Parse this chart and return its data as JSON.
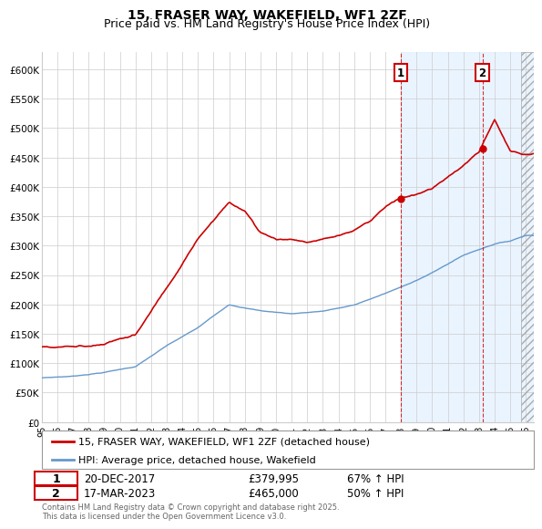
{
  "title": "15, FRASER WAY, WAKEFIELD, WF1 2ZF",
  "subtitle": "Price paid vs. HM Land Registry's House Price Index (HPI)",
  "ylabel_ticks": [
    "£0",
    "£50K",
    "£100K",
    "£150K",
    "£200K",
    "£250K",
    "£300K",
    "£350K",
    "£400K",
    "£450K",
    "£500K",
    "£550K",
    "£600K"
  ],
  "ytick_values": [
    0,
    50000,
    100000,
    150000,
    200000,
    250000,
    300000,
    350000,
    400000,
    450000,
    500000,
    550000,
    600000
  ],
  "ylim": [
    0,
    630000
  ],
  "xlim_start": 1995.0,
  "xlim_end": 2026.5,
  "vline1_x": 2017.97,
  "vline2_x": 2023.21,
  "sale1_y": 379995,
  "sale2_y": 465000,
  "legend_line1": "15, FRASER WAY, WAKEFIELD, WF1 2ZF (detached house)",
  "legend_line2": "HPI: Average price, detached house, Wakefield",
  "table_row1": [
    "1",
    "20-DEC-2017",
    "£379,995",
    "67% ↑ HPI"
  ],
  "table_row2": [
    "2",
    "17-MAR-2023",
    "£465,000",
    "50% ↑ HPI"
  ],
  "footer": "Contains HM Land Registry data © Crown copyright and database right 2025.\nThis data is licensed under the Open Government Licence v3.0.",
  "line1_color": "#cc0000",
  "line2_color": "#6699cc",
  "vline_color": "#cc0000",
  "bg_shaded_color": "#ddeeff",
  "grid_color": "#cccccc",
  "title_fontsize": 10,
  "subtitle_fontsize": 9,
  "hpi_anchors_t": [
    1995,
    1997,
    1999,
    2001,
    2003,
    2005,
    2007,
    2009,
    2011,
    2013,
    2015,
    2017,
    2018,
    2020,
    2022,
    2023,
    2024,
    2025,
    2026
  ],
  "hpi_anchors_v": [
    75000,
    78000,
    85000,
    95000,
    130000,
    160000,
    200000,
    190000,
    185000,
    190000,
    200000,
    220000,
    230000,
    255000,
    285000,
    295000,
    305000,
    310000,
    320000
  ],
  "prop_anchors_t": [
    1995,
    1997,
    1999,
    2001,
    2003,
    2005,
    2007,
    2008,
    2009,
    2010,
    2011,
    2012,
    2013,
    2014,
    2015,
    2016,
    2017,
    2018,
    2019,
    2020,
    2021,
    2022,
    2023,
    2024,
    2025,
    2026
  ],
  "prop_anchors_v": [
    128000,
    130000,
    135000,
    150000,
    230000,
    310000,
    375000,
    360000,
    325000,
    315000,
    315000,
    310000,
    315000,
    320000,
    330000,
    345000,
    370000,
    385000,
    390000,
    400000,
    420000,
    440000,
    465000,
    520000,
    465000,
    460000
  ]
}
